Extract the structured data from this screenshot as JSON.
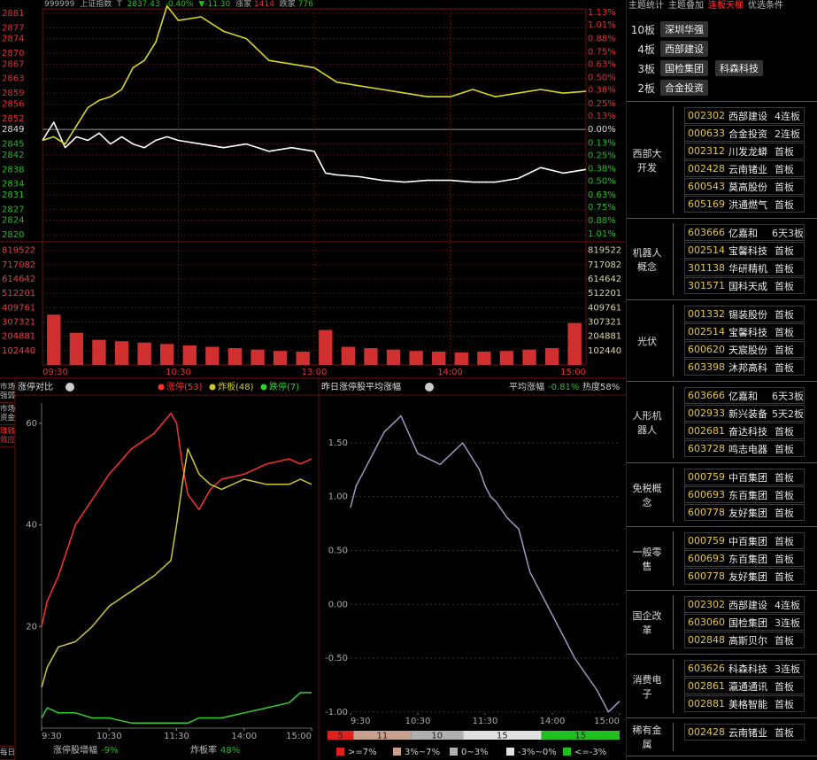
{
  "header": {
    "code": "999999",
    "name": "上证指数",
    "flag": "T",
    "price": "2837.43",
    "change_pct": "-0.40%",
    "change": "▼-11.30",
    "up_label": "涨家",
    "up_count": "1414",
    "down_label": "跌家",
    "down_count": "776"
  },
  "side_tabs": [
    "市场强弱",
    "市场资金",
    "赚钱效应",
    "每日"
  ],
  "chart_data": [
    {
      "type": "line",
      "x": [
        0,
        5,
        10,
        15,
        20,
        25,
        30,
        35,
        40,
        45,
        50,
        55,
        60,
        70,
        80,
        90,
        100,
        110,
        120,
        125,
        130,
        140,
        150,
        160,
        170,
        180,
        190,
        200,
        210,
        220,
        230,
        240
      ],
      "series": [
        {
          "color": "#ffffff",
          "values": [
            2846,
            2851,
            2844,
            2847,
            2846,
            2848,
            2845,
            2847,
            2845,
            2844,
            2846,
            2847,
            2846,
            2845,
            2844,
            2845,
            2843,
            2844,
            2843,
            2837,
            2836.5,
            2836,
            2835,
            2834.5,
            2835,
            2835,
            2834.5,
            2834.5,
            2835.5,
            2838.5,
            2837,
            2838
          ]
        },
        {
          "color": "#d8d820",
          "values": [
            2846,
            2847,
            2845,
            2850,
            2855,
            2857,
            2858,
            2860,
            2866,
            2868,
            2873,
            2883,
            2879,
            2880,
            2876,
            2874,
            2868,
            2867,
            2866,
            2864,
            2862,
            2861,
            2860,
            2859,
            2858,
            2858,
            2860,
            2858,
            2859,
            2860,
            2859,
            2859.5
          ]
        }
      ],
      "xlim": [
        0,
        240
      ],
      "xticks": [
        {
          "value": 0,
          "label": "09:30"
        },
        {
          "value": 60,
          "label": "10:30"
        },
        {
          "value": 120,
          "label": "13:00"
        },
        {
          "value": 180,
          "label": "14:00"
        },
        {
          "value": 240,
          "label": "15:00"
        }
      ],
      "ylim": [
        2818.8,
        2882.2
      ],
      "yticks": [
        2881,
        2877,
        2874,
        2870,
        2867,
        2863,
        2859,
        2856,
        2852,
        2849,
        2845,
        2842,
        2838,
        2834,
        2831,
        2827,
        2824,
        2820
      ],
      "y2lim": [
        -1.06,
        1.165
      ],
      "y2ticks": [
        {
          "value": 1.13,
          "label": "1.13%"
        },
        {
          "value": 1.01,
          "label": "1.01%"
        },
        {
          "value": 0.88,
          "label": "0.88%"
        },
        {
          "value": 0.75,
          "label": "0.75%"
        },
        {
          "value": 0.63,
          "label": "0.63%"
        },
        {
          "value": 0.5,
          "label": "0.50%"
        },
        {
          "value": 0.38,
          "label": "0.38%"
        },
        {
          "value": 0.25,
          "label": "0.25%"
        },
        {
          "value": 0.13,
          "label": "0.13%"
        },
        {
          "value": 0,
          "label": "0.00%"
        },
        {
          "value": -0.13,
          "label": "0.13%"
        },
        {
          "value": -0.25,
          "label": "0.25%"
        },
        {
          "value": -0.38,
          "label": "0.38%"
        },
        {
          "value": -0.5,
          "label": "0.50%"
        },
        {
          "value": -0.63,
          "label": "0.63%"
        },
        {
          "value": -0.75,
          "label": "0.75%"
        },
        {
          "value": -0.88,
          "label": "0.88%"
        },
        {
          "value": -1.01,
          "label": "1.01%"
        }
      ],
      "volume": {
        "type": "bar",
        "color": "#d03030",
        "x": [
          5,
          15,
          25,
          35,
          45,
          55,
          65,
          75,
          85,
          95,
          105,
          115,
          125,
          135,
          145,
          155,
          165,
          175,
          185,
          195,
          205,
          215,
          225,
          235
        ],
        "values": [
          360000,
          230000,
          180000,
          170000,
          160000,
          150000,
          140000,
          130000,
          120000,
          110000,
          100000,
          95000,
          250000,
          130000,
          120000,
          110000,
          100000,
          95000,
          90000,
          95000,
          100000,
          110000,
          120000,
          300000
        ],
        "ylim": [
          0,
          855770
        ],
        "yticks": [
          819522,
          717082,
          614642,
          512201,
          409761,
          307321,
          204881,
          102440
        ]
      }
    },
    {
      "type": "line",
      "title": "涨停对比",
      "x": [
        0,
        5,
        15,
        30,
        45,
        60,
        80,
        100,
        115,
        120,
        125,
        130,
        140,
        150,
        160,
        180,
        200,
        220,
        230,
        240
      ],
      "series": [
        {
          "name": "涨停(53)",
          "color": "#ff3030",
          "values": [
            20,
            25,
            30,
            40,
            45,
            50,
            55,
            58,
            62,
            60,
            52,
            46,
            43,
            47,
            49,
            50,
            52,
            53,
            52,
            53
          ]
        },
        {
          "name": "炸板(48)",
          "color": "#d0c830",
          "values": [
            8,
            12,
            16,
            17,
            20,
            24,
            27,
            30,
            33,
            40,
            48,
            55,
            50,
            48,
            47,
            49,
            48,
            48,
            49,
            48
          ]
        },
        {
          "name": "跌停(7)",
          "color": "#30d030",
          "values": [
            2,
            4,
            3,
            3,
            2,
            2,
            1,
            1,
            1,
            1,
            1,
            1,
            2,
            2,
            2,
            3,
            4,
            5,
            7,
            7
          ]
        }
      ],
      "xlim": [
        0,
        240
      ],
      "xticks": [
        {
          "value": 0,
          "label": "9:30"
        },
        {
          "value": 60,
          "label": "10:30"
        },
        {
          "value": 120,
          "label": "11:30"
        },
        {
          "value": 180,
          "label": "14:00"
        },
        {
          "value": 240,
          "label": "15:00"
        }
      ],
      "ylim": [
        0,
        64
      ],
      "yticks": [
        20,
        40,
        60
      ],
      "footer": [
        {
          "label": "涨停股增幅",
          "value": "-9%"
        },
        {
          "label": "炸板率",
          "value": "48%"
        }
      ]
    },
    {
      "type": "line",
      "title": "昨日涨停股平均涨幅",
      "stat_label": "平均涨幅",
      "stat_value": "-0.81%",
      "heat": "热度58%",
      "x": [
        0,
        5,
        15,
        30,
        45,
        60,
        80,
        100,
        115,
        120,
        125,
        130,
        140,
        150,
        160,
        180,
        200,
        220,
        230,
        240
      ],
      "series": [
        {
          "color": "#9a9ac0",
          "values": [
            0.9,
            1.1,
            1.3,
            1.6,
            1.75,
            1.4,
            1.3,
            1.5,
            1.25,
            1.1,
            1.0,
            0.95,
            0.8,
            0.7,
            0.3,
            -0.1,
            -0.5,
            -0.8,
            -1.0,
            -0.9
          ]
        }
      ],
      "xlim": [
        0,
        240
      ],
      "xticks": [
        {
          "value": 0,
          "label": "9:30"
        },
        {
          "value": 60,
          "label": "10:30"
        },
        {
          "value": 120,
          "label": "11:30"
        },
        {
          "value": 180,
          "label": "14:00"
        },
        {
          "value": 240,
          "label": "15:00"
        }
      ],
      "ylim": [
        -1.01,
        1.87
      ],
      "yticks": [
        {
          "value": 1.5,
          "label": "1.50"
        },
        {
          "value": 1,
          "label": "1.00"
        },
        {
          "value": 0.5,
          "label": "0.50"
        },
        {
          "value": 0,
          "label": "0.00"
        },
        {
          "value": -0.5,
          "label": "-0.50"
        },
        {
          "value": -1,
          "label": "-1.00"
        }
      ],
      "distribution": {
        "type": "bar",
        "values": [
          5,
          11,
          10,
          15,
          15
        ],
        "colors": [
          "#e02020",
          "#c8a090",
          "#b0b0b0",
          "#e0e0e0",
          "#20c020"
        ],
        "categories": [
          ">=7%",
          "3%~7%",
          "0~3%",
          "-3%~0%",
          "<=-3%"
        ]
      }
    }
  ],
  "panel": {
    "tabs": [
      "主题统计",
      "主题叠加",
      "连板天梯",
      "优选条件"
    ],
    "ladder": [
      {
        "level": "10板",
        "stocks": [
          "深圳华强"
        ]
      },
      {
        "level": "4板",
        "stocks": [
          "西部建设"
        ]
      },
      {
        "level": "3板",
        "stocks": [
          "国检集团",
          "科森科技"
        ]
      },
      {
        "level": "2板",
        "stocks": [
          "合金投资"
        ]
      }
    ],
    "groups": [
      {
        "name": "西部大开发",
        "stocks": [
          {
            "code": "002302",
            "name": "西部建设",
            "status": "4连板"
          },
          {
            "code": "000633",
            "name": "合金投资",
            "status": "2连板"
          },
          {
            "code": "002312",
            "name": "川发龙蟒",
            "status": "首板"
          },
          {
            "code": "002428",
            "name": "云南锗业",
            "status": "首板"
          },
          {
            "code": "600543",
            "name": "莫高股份",
            "status": "首板"
          },
          {
            "code": "605169",
            "name": "洪通燃气",
            "status": "首板"
          }
        ]
      },
      {
        "name": "机器人概念",
        "stocks": [
          {
            "code": "603666",
            "name": "亿嘉和",
            "status": "6天3板"
          },
          {
            "code": "002514",
            "name": "宝馨科技",
            "status": "首板"
          },
          {
            "code": "301138",
            "name": "华研精机",
            "status": "首板"
          },
          {
            "code": "301571",
            "name": "国科天成",
            "status": "首板"
          }
        ]
      },
      {
        "name": "光伏",
        "stocks": [
          {
            "code": "001332",
            "name": "锡装股份",
            "status": "首板"
          },
          {
            "code": "002514",
            "name": "宝馨科技",
            "status": "首板"
          },
          {
            "code": "600620",
            "name": "天宸股份",
            "status": "首板"
          },
          {
            "code": "603398",
            "name": "沐邦高科",
            "status": "首板"
          }
        ]
      },
      {
        "name": "人形机器人",
        "stocks": [
          {
            "code": "603666",
            "name": "亿嘉和",
            "status": "6天3板"
          },
          {
            "code": "002933",
            "name": "新兴装备",
            "status": "5天2板"
          },
          {
            "code": "002681",
            "name": "奋达科技",
            "status": "首板"
          },
          {
            "code": "603728",
            "name": "鸣志电器",
            "status": "首板"
          }
        ]
      },
      {
        "name": "免税概念",
        "stocks": [
          {
            "code": "000759",
            "name": "中百集团",
            "status": "首板"
          },
          {
            "code": "600693",
            "name": "东百集团",
            "status": "首板"
          },
          {
            "code": "600778",
            "name": "友好集团",
            "status": "首板"
          }
        ]
      },
      {
        "name": "一般零售",
        "stocks": [
          {
            "code": "000759",
            "name": "中百集团",
            "status": "首板"
          },
          {
            "code": "600693",
            "name": "东百集团",
            "status": "首板"
          },
          {
            "code": "600778",
            "name": "友好集团",
            "status": "首板"
          }
        ]
      },
      {
        "name": "国企改革",
        "stocks": [
          {
            "code": "002302",
            "name": "西部建设",
            "status": "4连板"
          },
          {
            "code": "603060",
            "name": "国检集团",
            "status": "3连板"
          },
          {
            "code": "002848",
            "name": "高斯贝尔",
            "status": "首板"
          }
        ]
      },
      {
        "name": "消费电子",
        "stocks": [
          {
            "code": "603626",
            "name": "科森科技",
            "status": "3连板"
          },
          {
            "code": "002861",
            "name": "瀛通通讯",
            "status": "首板"
          },
          {
            "code": "002881",
            "name": "美格智能",
            "status": "首板"
          }
        ]
      },
      {
        "name": "稀有金属",
        "stocks": [
          {
            "code": "002428",
            "name": "云南锗业",
            "status": "首板"
          }
        ]
      }
    ]
  }
}
